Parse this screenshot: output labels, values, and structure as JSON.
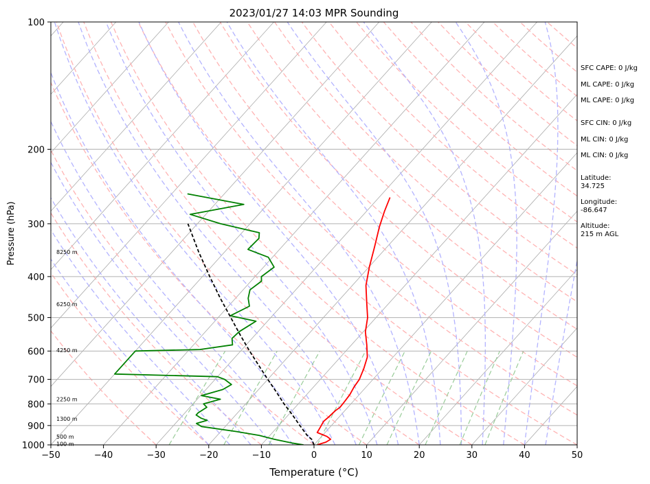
{
  "chart_data": {
    "type": "line",
    "subtype": "skew-t log-p sounding",
    "title": "2023/01/27 14:03 MPR Sounding",
    "xlabel": "Temperature (°C)",
    "ylabel": "Pressure (hPa)",
    "xlim": [
      -50,
      50
    ],
    "ylim": [
      1000,
      100
    ],
    "y_scale": "log",
    "x_ticks": [
      "−50",
      "−40",
      "−30",
      "−20",
      "−10",
      "0",
      "10",
      "20",
      "30",
      "40",
      "50"
    ],
    "y_ticks": [
      "100",
      "200",
      "300",
      "400",
      "500",
      "600",
      "700",
      "800",
      "900",
      "1000"
    ],
    "grid": true,
    "series": [
      {
        "color": "#ff0000",
        "style": "solid",
        "points": [
          [
            1000,
            0.6
          ],
          [
            985,
            1.8
          ],
          [
            970,
            2.2
          ],
          [
            955,
            1.0
          ],
          [
            935,
            -1.5
          ],
          [
            910,
            -1.8
          ],
          [
            880,
            -2.2
          ],
          [
            860,
            -2.0
          ],
          [
            830,
            -1.8
          ],
          [
            815,
            -1.5
          ],
          [
            790,
            -1.6
          ],
          [
            760,
            -1.8
          ],
          [
            730,
            -2.3
          ],
          [
            700,
            -2.6
          ],
          [
            660,
            -3.6
          ],
          [
            620,
            -4.9
          ],
          [
            580,
            -7.1
          ],
          [
            540,
            -9.6
          ],
          [
            500,
            -11.6
          ],
          [
            460,
            -14.4
          ],
          [
            420,
            -17.4
          ],
          [
            380,
            -19.9
          ],
          [
            340,
            -22.4
          ],
          [
            305,
            -24.9
          ],
          [
            280,
            -26.6
          ],
          [
            260,
            -27.9
          ]
        ]
      },
      {
        "color": "#008000",
        "style": "solid",
        "points": [
          [
            1000,
            -2.0
          ],
          [
            990,
            -4.5
          ],
          [
            970,
            -8.5
          ],
          [
            950,
            -12.0
          ],
          [
            930,
            -17.0
          ],
          [
            905,
            -24.5
          ],
          [
            890,
            -26.0
          ],
          [
            875,
            -24.5
          ],
          [
            865,
            -26.0
          ],
          [
            850,
            -27.5
          ],
          [
            840,
            -27.5
          ],
          [
            815,
            -26.8
          ],
          [
            800,
            -28.0
          ],
          [
            780,
            -25.6
          ],
          [
            765,
            -29.8
          ],
          [
            740,
            -26.8
          ],
          [
            720,
            -26.0
          ],
          [
            700,
            -28.2
          ],
          [
            690,
            -30.0
          ],
          [
            680,
            -50.0
          ],
          [
            600,
            -50.0
          ],
          [
            595,
            -38.0
          ],
          [
            580,
            -32.6
          ],
          [
            560,
            -33.8
          ],
          [
            540,
            -33.6
          ],
          [
            510,
            -32.2
          ],
          [
            495,
            -38.0
          ],
          [
            470,
            -36.0
          ],
          [
            450,
            -37.6
          ],
          [
            430,
            -38.7
          ],
          [
            410,
            -38.0
          ],
          [
            400,
            -38.8
          ],
          [
            380,
            -38.0
          ],
          [
            360,
            -40.8
          ],
          [
            345,
            -46.0
          ],
          [
            325,
            -45.8
          ],
          [
            315,
            -46.7
          ],
          [
            300,
            -55.6
          ],
          [
            285,
            -63.0
          ],
          [
            270,
            -54.5
          ],
          [
            255,
            -67.0
          ]
        ]
      },
      {
        "color": "#000000",
        "style": "dashed",
        "points": [
          [
            1000,
            0.0
          ],
          [
            970,
            -1.4
          ],
          [
            950,
            -2.9
          ],
          [
            900,
            -6.0
          ],
          [
            850,
            -9.2
          ],
          [
            800,
            -12.7
          ],
          [
            750,
            -16.2
          ],
          [
            700,
            -20.0
          ],
          [
            650,
            -24.0
          ],
          [
            600,
            -28.3
          ],
          [
            550,
            -32.8
          ],
          [
            500,
            -37.6
          ],
          [
            450,
            -42.9
          ],
          [
            400,
            -48.6
          ],
          [
            350,
            -54.9
          ],
          [
            300,
            -61.8
          ]
        ]
      }
    ],
    "height_labels": [
      {
        "pressure": 994,
        "label": "100 m"
      },
      {
        "pressure": 956,
        "label": "500 m"
      },
      {
        "pressure": 868,
        "label": "1300 m"
      },
      {
        "pressure": 780,
        "label": "2250 m"
      },
      {
        "pressure": 597,
        "label": "4250 m"
      },
      {
        "pressure": 465,
        "label": "6250 m"
      },
      {
        "pressure": 350,
        "label": "8250 m"
      }
    ],
    "background_lines": {
      "isotherms_color": "#aaaaaa",
      "dry_adiabats_color": "#ffb3b3",
      "moist_adiabats_color": "#b3b3ff",
      "mixing_ratio_color": "#99cc99"
    }
  },
  "stats": {
    "sfc_cape": "SFC CAPE: 0 J/kg",
    "ml_cape": "ML CAPE: 0 J/kg",
    "ml_cape_2": "ML CAPE: 0 J/kg",
    "sfc_cin": "SFC CIN: 0 J/kg",
    "ml_cin": "ML CIN: 0 J/kg",
    "ml_cin_2": "ML CIN: 0 J/kg",
    "latitude_label": "Latitude:",
    "latitude_value": "34.725",
    "longitude_label": "Longitude:",
    "longitude_value": "-86.647",
    "altitude_label": "Altitude:",
    "altitude_value": "215 m AGL"
  }
}
